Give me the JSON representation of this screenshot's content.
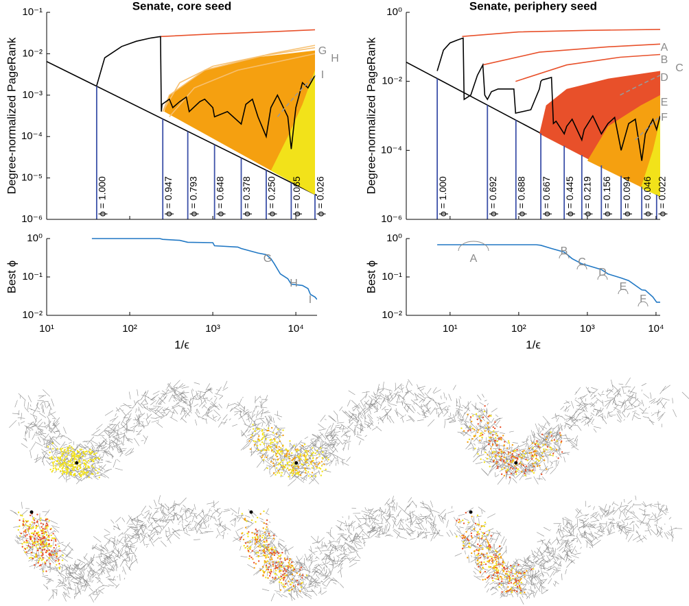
{
  "chart_data": [
    {
      "type": "line",
      "title": "Senate, core seed",
      "ylabel": "Degree-normalized PageRank",
      "xscale": "log",
      "yscale": "log",
      "xlim": [
        10,
        18000
      ],
      "ylim": [
        1e-06,
        0.1
      ],
      "xticks": [
        10,
        100,
        1000,
        10000
      ],
      "yticks": [
        {
          "value": 1e-06,
          "label": "10⁻⁶"
        },
        {
          "value": 1e-05,
          "label": "10⁻⁵"
        },
        {
          "value": 0.0001,
          "label": "10⁻⁴"
        },
        {
          "value": 0.001,
          "label": "10⁻³"
        },
        {
          "value": 0.01,
          "label": "10⁻²"
        },
        {
          "value": 0.1,
          "label": "10⁻¹"
        }
      ],
      "grid": false,
      "series": [
        {
          "color": "#000000",
          "x": [
            10,
            18000
          ],
          "values": [
            0.0065,
            3.8e-06
          ]
        },
        {
          "color": "#f5a010",
          "fill": true,
          "x": [
            260,
            17000,
            17000,
            3000,
            800,
            300
          ],
          "values": [
            0.0004,
            3.9e-06,
            0.012,
            0.008,
            0.004,
            0.001
          ]
        },
        {
          "color": "#f2e21a",
          "fill": true,
          "x": [
            5000,
            17000,
            17000,
            12000,
            8000
          ],
          "values": [
            1.5e-05,
            3.9e-06,
            0.004,
            0.0006,
            0.0001
          ]
        },
        {
          "color": "#f7c070",
          "x": [
            250,
            400,
            1000,
            4000,
            17000
          ],
          "values": [
            0.0004,
            0.002,
            0.005,
            0.009,
            0.014
          ]
        },
        {
          "color": "#f7c070",
          "x": [
            300,
            600,
            2000,
            17000
          ],
          "values": [
            0.0003,
            0.0015,
            0.004,
            0.01
          ]
        },
        {
          "color": "#f7c070",
          "x": [
            250,
            300,
            800,
            5000,
            17000
          ],
          "values": [
            0.0004,
            0.001,
            0.004,
            0.01,
            0.016
          ]
        },
        {
          "color": "#e8502a",
          "x": [
            235,
            1000,
            5000,
            17000
          ],
          "values": [
            0.026,
            0.03,
            0.034,
            0.038
          ]
        },
        {
          "color": "#000000",
          "x": [
            40,
            50,
            80,
            120,
            180,
            235,
            240,
            245,
            300,
            330,
            400,
            480,
            520,
            700,
            800,
            1000,
            1050,
            1500,
            2200,
            2500,
            3000,
            3500,
            4400,
            5000,
            6000,
            8000,
            8800,
            10000,
            12000,
            14000,
            17000
          ],
          "values": [
            0.0017,
            0.008,
            0.015,
            0.02,
            0.024,
            0.026,
            0.0004,
            0.0006,
            0.0008,
            0.0005,
            0.0007,
            0.0009,
            0.0004,
            0.0007,
            0.0008,
            0.0005,
            0.0003,
            0.0004,
            0.0002,
            0.0006,
            0.0008,
            0.0003,
            0.0001,
            0.0005,
            0.001,
            0.0003,
            5e-05,
            0.0005,
            0.002,
            0.0015,
            0.003
          ]
        },
        {
          "color": "#999999",
          "dashed": true,
          "x": [
            6000,
            10000,
            17000
          ],
          "values": [
            0.0003,
            0.001,
            0.003
          ]
        }
      ],
      "phi_lines": {
        "color": "#3b4fa8",
        "x": [
          40,
          250,
          500,
          1050,
          2200,
          4400,
          8800,
          17000
        ],
        "labels": [
          "ϕ = 1.000",
          "ϕ = 0.947",
          "ϕ = 0.793",
          "ϕ = 0.648",
          "ϕ = 0.378",
          "ϕ = 0.250",
          "ϕ = 0.065",
          "ϕ = 0.026"
        ]
      },
      "annotations": [
        "G",
        "H",
        "I"
      ]
    },
    {
      "type": "line",
      "title": "Senate, periphery seed",
      "ylabel": "Degree-normalized PageRank",
      "xscale": "log",
      "yscale": "log",
      "xlim": [
        2.3,
        11500
      ],
      "ylim": [
        1e-06,
        1
      ],
      "xticks": [
        10,
        100,
        1000,
        10000
      ],
      "yticks": [
        {
          "value": 1e-06,
          "label": "10⁻⁶"
        },
        {
          "value": 0.0001,
          "label": "10⁻⁴"
        },
        {
          "value": 0.01,
          "label": "10⁻²"
        },
        {
          "value": 1,
          "label": "10⁰"
        }
      ],
      "grid": false,
      "series": [
        {
          "color": "#000000",
          "x": [
            2.3,
            11500
          ],
          "values": [
            0.036,
            4.6e-06
          ]
        },
        {
          "color": "#e8502a",
          "fill": true,
          "x": [
            200,
            11500,
            11500,
            2000,
            500,
            250
          ],
          "values": [
            0.0003,
            4.6e-06,
            0.02,
            0.012,
            0.006,
            0.002
          ]
        },
        {
          "color": "#f5a010",
          "fill": true,
          "x": [
            1000,
            11500,
            11500,
            6000,
            2000
          ],
          "values": [
            5e-05,
            4.6e-06,
            0.004,
            0.002,
            0.0005
          ]
        },
        {
          "color": "#f2e21a",
          "fill": true,
          "x": [
            6000,
            11500,
            11500,
            9000
          ],
          "values": [
            8e-06,
            4.6e-06,
            0.0008,
            0.0001
          ]
        },
        {
          "color": "#e8502a",
          "x": [
            15,
            100,
            1000,
            11500
          ],
          "values": [
            0.2,
            0.27,
            0.3,
            0.32
          ]
        },
        {
          "color": "#e8502a",
          "x": [
            30,
            200,
            2000,
            11500
          ],
          "values": [
            0.03,
            0.07,
            0.1,
            0.12
          ]
        },
        {
          "color": "#e8502a",
          "x": [
            90,
            500,
            3000,
            11500
          ],
          "values": [
            0.01,
            0.03,
            0.05,
            0.06
          ]
        },
        {
          "color": "#000000",
          "x": [
            6.5,
            8,
            10,
            13,
            15.5,
            16,
            20,
            25,
            30,
            32,
            35,
            40,
            50,
            85,
            90,
            150,
            200,
            210,
            220,
            260,
            300,
            320,
            350,
            460,
            500,
            600,
            830,
            900,
            1200,
            1600,
            2000,
            2500,
            3100,
            4000,
            5000,
            6200,
            7000,
            9000,
            10200,
            11500
          ],
          "values": [
            0.02,
            0.08,
            0.13,
            0.16,
            0.18,
            0.003,
            0.004,
            0.015,
            0.03,
            0.004,
            0.003,
            0.005,
            0.006,
            0.006,
            0.0012,
            0.0015,
            0.006,
            0.01,
            0.011,
            0.012,
            0.013,
            0.0006,
            0.0007,
            0.0003,
            0.0005,
            0.0008,
            0.0002,
            0.0004,
            0.001,
            0.0003,
            0.0006,
            0.0009,
            0.0001,
            0.0006,
            0.0008,
            5e-05,
            0.0003,
            0.0008,
            0.0004,
            0.001
          ]
        },
        {
          "color": "#999999",
          "dashed": true,
          "x": [
            3000,
            6000,
            11500
          ],
          "values": [
            0.004,
            0.008,
            0.015
          ]
        },
        {
          "color": "#999999",
          "dashed": true,
          "x": [
            5000,
            8000,
            11500
          ],
          "values": [
            0.0002,
            0.0005,
            0.001
          ]
        }
      ],
      "phi_lines": {
        "color": "#3b4fa8",
        "x": [
          6.5,
          35,
          91,
          210,
          460,
          830,
          1600,
          3100,
          6200,
          10200
        ],
        "labels": [
          "ϕ = 1.000",
          "ϕ = 0.692",
          "ϕ = 0.688",
          "ϕ = 0.667",
          "ϕ = 0.445",
          "ϕ = 0.219",
          "ϕ = 0.156",
          "ϕ = 0.094",
          "ϕ = 0.046",
          "ϕ = 0.022"
        ]
      },
      "annotations": [
        "A",
        "B",
        "C",
        "D",
        "E",
        "F"
      ]
    },
    {
      "type": "line",
      "ylabel": "Best ϕ",
      "xlabel": "1/ϵ",
      "xscale": "log",
      "yscale": "log",
      "xlim": [
        10,
        18000
      ],
      "ylim": [
        0.01,
        1
      ],
      "xticks": [
        {
          "value": 10,
          "label": "10¹"
        },
        {
          "value": 100,
          "label": "10²"
        },
        {
          "value": 1000,
          "label": "10³"
        },
        {
          "value": 10000,
          "label": "10⁴"
        }
      ],
      "yticks": [
        {
          "value": 0.01,
          "label": "10⁻²"
        },
        {
          "value": 0.1,
          "label": "10⁻¹"
        },
        {
          "value": 1,
          "label": "10⁰"
        }
      ],
      "grid": false,
      "series": [
        {
          "color": "#1f77c4",
          "x": [
            35,
            230,
            250,
            400,
            500,
            1000,
            1050,
            2000,
            2200,
            3500,
            4400,
            5000,
            5500,
            6500,
            8000,
            8800,
            12000,
            14000,
            15000,
            17000,
            18000
          ],
          "values": [
            1,
            1,
            0.95,
            0.9,
            0.8,
            0.78,
            0.65,
            0.6,
            0.55,
            0.42,
            0.38,
            0.3,
            0.22,
            0.12,
            0.09,
            0.065,
            0.06,
            0.05,
            0.035,
            0.03,
            0.026
          ]
        }
      ],
      "annotations": [
        "G",
        "H",
        "I"
      ]
    },
    {
      "type": "line",
      "ylabel": "Best ϕ",
      "xlabel": "1/ϵ",
      "xscale": "log",
      "yscale": "log",
      "xlim": [
        2.3,
        11500
      ],
      "ylim": [
        0.01,
        1
      ],
      "xticks": [
        {
          "value": 10,
          "label": "10¹"
        },
        {
          "value": 100,
          "label": "10²"
        },
        {
          "value": 1000,
          "label": "10³"
        },
        {
          "value": 10000,
          "label": "10⁴"
        }
      ],
      "yticks": [
        {
          "value": 0.01,
          "label": "10⁻²"
        },
        {
          "value": 0.1,
          "label": "10⁻¹"
        },
        {
          "value": 1,
          "label": "10⁰"
        }
      ],
      "grid": false,
      "series": [
        {
          "color": "#1f77c4",
          "x": [
            6.5,
            30,
            35,
            180,
            210,
            300,
            460,
            600,
            830,
            1000,
            1600,
            2000,
            3100,
            4000,
            6200,
            7000,
            9000,
            10200,
            11500
          ],
          "values": [
            0.69,
            0.69,
            0.69,
            0.69,
            0.667,
            0.55,
            0.445,
            0.3,
            0.22,
            0.2,
            0.156,
            0.12,
            0.094,
            0.08,
            0.046,
            0.045,
            0.03,
            0.022,
            0.022
          ]
        }
      ],
      "annotations": [
        "A",
        "B",
        "C",
        "D",
        "E",
        "F"
      ]
    }
  ]
}
